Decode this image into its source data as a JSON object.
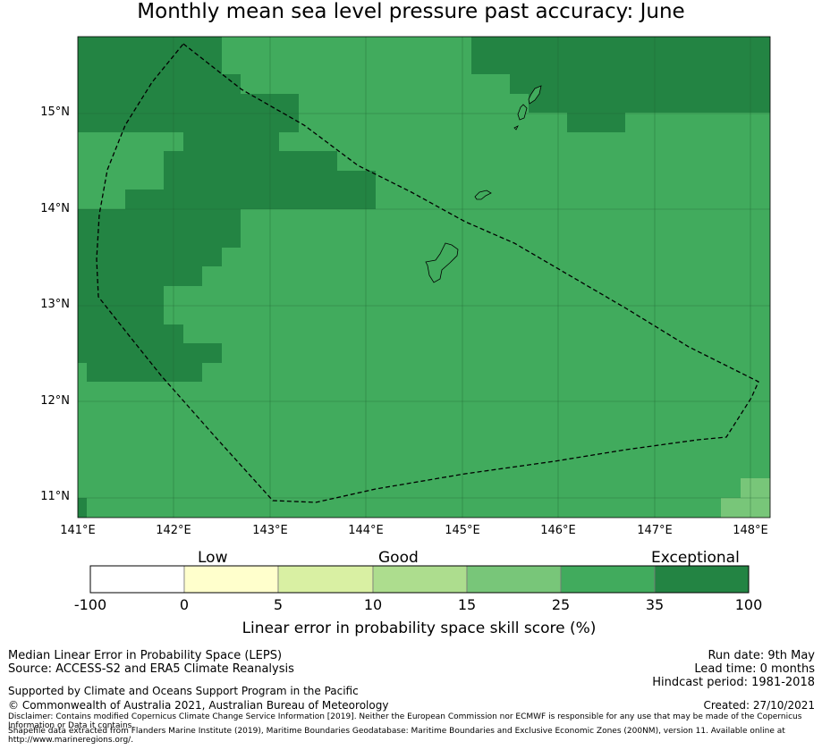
{
  "title": "Monthly mean sea level pressure past accuracy: June",
  "map": {
    "lat_labels": [
      "15°N",
      "14°N",
      "13°N",
      "12°N",
      "11°N"
    ],
    "lon_labels": [
      "141°E",
      "142°E",
      "143°E",
      "144°E",
      "145°E",
      "146°E",
      "147°E",
      "148°E"
    ],
    "extent": {
      "lon": [
        141.0,
        148.2
      ],
      "lat": [
        10.8,
        15.8
      ]
    },
    "grid": true,
    "boundary_style": "dashed EEZ outline",
    "islands": [
      "Guam",
      "Rota",
      "Tinian",
      "Saipan"
    ]
  },
  "colorbar": {
    "categories": [
      "Low",
      "Good",
      "Exceptional"
    ],
    "ticks": [
      "-100",
      "0",
      "5",
      "10",
      "15",
      "25",
      "35",
      "100"
    ],
    "colors": [
      "#ffffff",
      "#ffffcc",
      "#d9f0a3",
      "#addd8e",
      "#78c679",
      "#41ab5d",
      "#238443"
    ],
    "label": "Linear error in probability space skill score (%)"
  },
  "footer": {
    "left": [
      "Median Linear Error in Probability Space (LEPS)",
      "Source: ACCESS-S2 and ERA5 Climate Reanalysis",
      "Supported by Climate and Oceans Support Program in the Pacific",
      "© Commonwealth of Australia 2021, Australian Bureau of Meteorology"
    ],
    "right": [
      "Run date: 9th May",
      "Lead time: 0 months",
      "Hindcast period: 1981-2018",
      "Created: 27/10/2021"
    ],
    "disclaimer": "Disclaimer: Contains modified Copernicus Climate Change Service Information [2019]. Neither the European Commission nor ECMWF is responsible for any use that may be made of the Copernicus Information or Data it contains.",
    "shapefile": "Shapefile data extracted from Flanders Marine Institute (2019), Maritime Boundaries Geodatabase: Maritime Boundaries and Exclusive Economic Zones (200NM), version 11. Available online at http://www.marineregions.org/."
  }
}
